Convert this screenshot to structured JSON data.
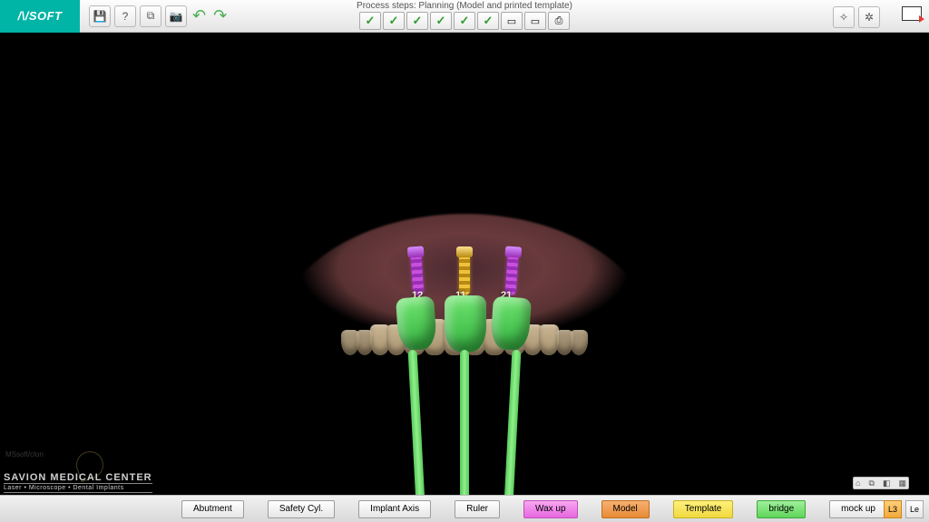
{
  "app": {
    "logo_text": "/\\/SOFT"
  },
  "toolbar": {
    "left_icons": [
      "save-icon",
      "help-icon",
      "link-icon",
      "camera-icon"
    ],
    "process_title": "Process steps: Planning (Model and printed template)",
    "steps_done": 6,
    "steps_total": 9
  },
  "viewport": {
    "implants": [
      {
        "tooth": "12",
        "color": "#c84fe0"
      },
      {
        "tooth": "11",
        "color": "#f0c23a"
      },
      {
        "tooth": "21",
        "color": "#c84fe0"
      }
    ],
    "wax_color": "#5fd65a",
    "pin_color": "#7be077",
    "background": "#000000"
  },
  "watermark": {
    "small": "MSsoft/clon"
  },
  "brand": {
    "line1": "SAVION MEDICAL CENTER",
    "line2": "Laser • Microscope • Dental Implants"
  },
  "bottombar": {
    "buttons": [
      {
        "label": "Abutment",
        "variant": "plain"
      },
      {
        "label": "Safety Cyl.",
        "variant": "plain"
      },
      {
        "label": "Implant Axis",
        "variant": "plain"
      },
      {
        "label": "Ruler",
        "variant": "plain"
      },
      {
        "label": "Wax up",
        "variant": "magenta"
      },
      {
        "label": "Model",
        "variant": "orange"
      },
      {
        "label": "Template",
        "variant": "yellow"
      },
      {
        "label": "bridge",
        "variant": "green"
      },
      {
        "label": "mock up",
        "variant": "plain"
      }
    ],
    "right_btn": "L3",
    "right_label": "Le"
  },
  "rbar": {
    "a": "⌂",
    "b": "⧉",
    "c": "◧",
    "d": "▦"
  }
}
